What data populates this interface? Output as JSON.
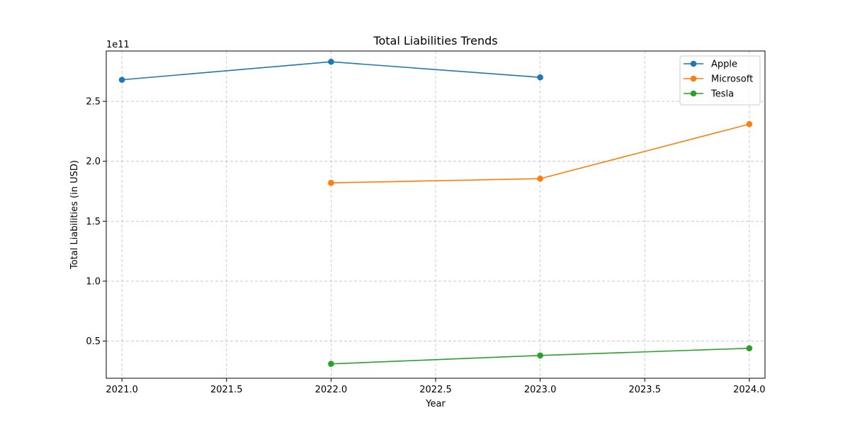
{
  "chart_data": {
    "type": "line",
    "title": "Total Liabilities Trends",
    "xlabel": "Year",
    "ylabel": "Total Liabilities (in USD)",
    "y_offset_label": "1e11",
    "y_scale_factor": 100000000000,
    "xlim": [
      2020.925,
      2024.075
    ],
    "ylim": [
      19000000000,
      292000000000
    ],
    "x_ticks": [
      2021.0,
      2021.5,
      2022.0,
      2022.5,
      2023.0,
      2023.5,
      2024.0
    ],
    "x_tick_labels": [
      "2021.0",
      "2021.5",
      "2022.0",
      "2022.5",
      "2023.0",
      "2023.5",
      "2024.0"
    ],
    "y_ticks": [
      50000000000,
      100000000000,
      150000000000,
      200000000000,
      250000000000
    ],
    "y_tick_labels": [
      "0.5",
      "1.0",
      "1.5",
      "2.0",
      "2.5"
    ],
    "grid": true,
    "legend_position": "top-right",
    "series": [
      {
        "name": "Apple",
        "color": "#1f77b4",
        "x": [
          2021,
          2022,
          2023
        ],
        "y": [
          268000000000,
          283000000000,
          270000000000
        ]
      },
      {
        "name": "Microsoft",
        "color": "#ff7f0e",
        "x": [
          2022,
          2023,
          2024
        ],
        "y": [
          182000000000,
          185500000000,
          231000000000
        ]
      },
      {
        "name": "Tesla",
        "color": "#2ca02c",
        "x": [
          2022,
          2023,
          2024
        ],
        "y": [
          31000000000,
          38000000000,
          44000000000
        ]
      }
    ]
  }
}
